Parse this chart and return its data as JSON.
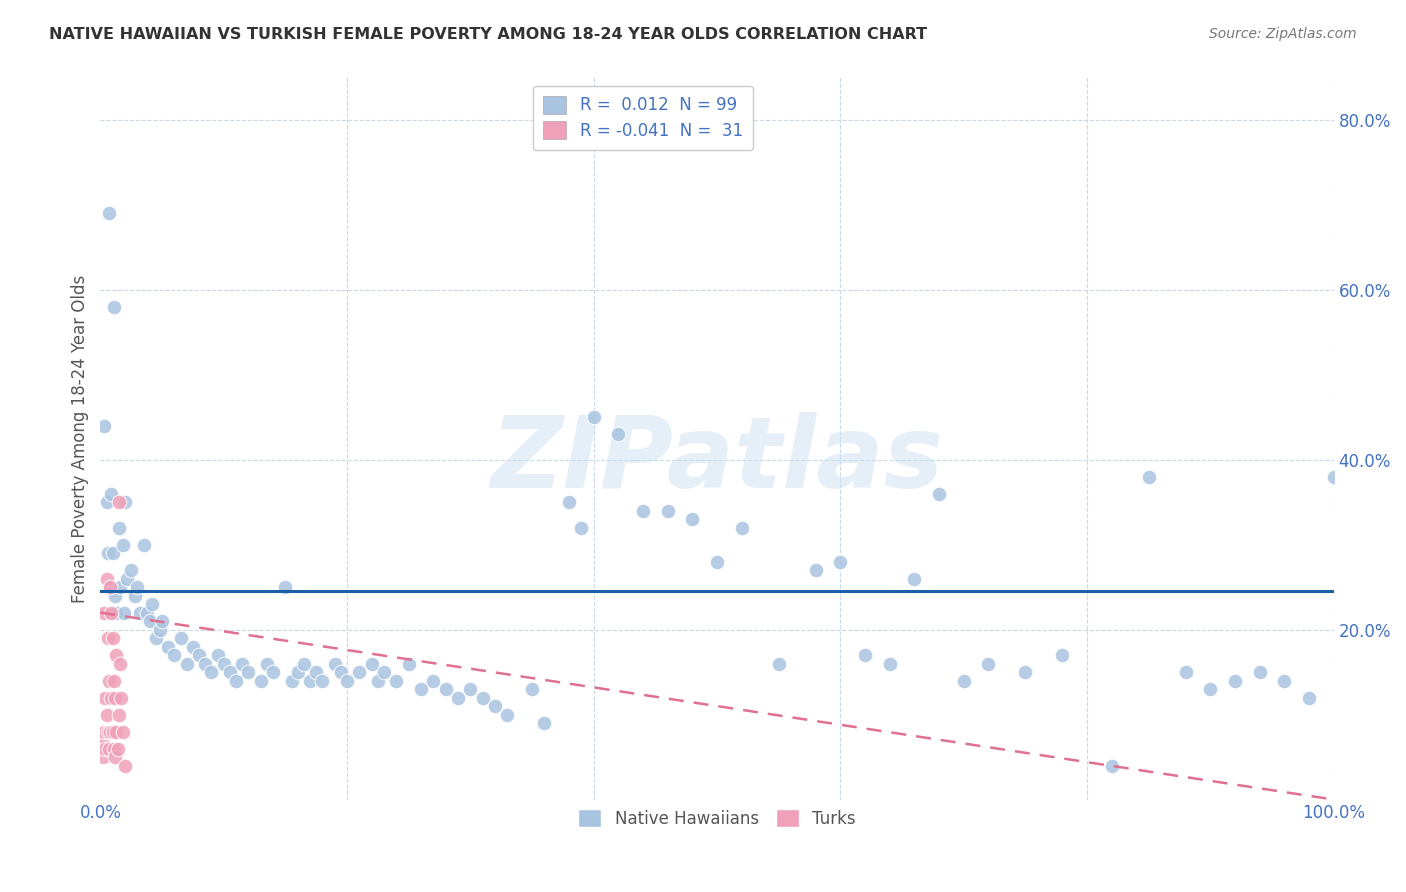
{
  "title": "NATIVE HAWAIIAN VS TURKISH FEMALE POVERTY AMONG 18-24 YEAR OLDS CORRELATION CHART",
  "source": "Source: ZipAtlas.com",
  "ylabel": "Female Poverty Among 18-24 Year Olds",
  "xlim": [
    0,
    1.0
  ],
  "ylim": [
    0,
    0.85
  ],
  "hawaiian_color": "#a8c4e0",
  "turkish_color": "#f0a0b8",
  "hawaiian_R": 0.012,
  "hawaiian_N": 99,
  "turkish_R": -0.041,
  "turkish_N": 31,
  "trendline_hawaiian_color": "#1a5fa8",
  "trendline_turkish_color": "#e07090",
  "background_color": "#ffffff",
  "grid_color": "#c8d8e8",
  "legend_label_hawaiian": "Native Hawaiians",
  "legend_label_turkish": "Turks",
  "watermark": "ZIPatlas",
  "nh_x": [
    0.003,
    0.005,
    0.006,
    0.008,
    0.009,
    0.01,
    0.012,
    0.013,
    0.015,
    0.016,
    0.018,
    0.019,
    0.02,
    0.022,
    0.025,
    0.028,
    0.03,
    0.032,
    0.035,
    0.038,
    0.04,
    0.042,
    0.045,
    0.048,
    0.05,
    0.055,
    0.06,
    0.065,
    0.07,
    0.075,
    0.08,
    0.085,
    0.09,
    0.095,
    0.1,
    0.105,
    0.11,
    0.115,
    0.12,
    0.13,
    0.135,
    0.14,
    0.15,
    0.155,
    0.16,
    0.165,
    0.17,
    0.175,
    0.18,
    0.19,
    0.195,
    0.2,
    0.21,
    0.22,
    0.225,
    0.23,
    0.24,
    0.25,
    0.26,
    0.27,
    0.28,
    0.29,
    0.3,
    0.31,
    0.32,
    0.33,
    0.35,
    0.36,
    0.38,
    0.39,
    0.4,
    0.42,
    0.44,
    0.46,
    0.48,
    0.5,
    0.52,
    0.55,
    0.58,
    0.6,
    0.62,
    0.64,
    0.66,
    0.68,
    0.7,
    0.72,
    0.75,
    0.78,
    0.82,
    0.85,
    0.88,
    0.9,
    0.92,
    0.94,
    0.96,
    0.98,
    1.0,
    0.007,
    0.011
  ],
  "nh_y": [
    0.44,
    0.35,
    0.29,
    0.25,
    0.36,
    0.29,
    0.24,
    0.22,
    0.32,
    0.25,
    0.3,
    0.22,
    0.35,
    0.26,
    0.27,
    0.24,
    0.25,
    0.22,
    0.3,
    0.22,
    0.21,
    0.23,
    0.19,
    0.2,
    0.21,
    0.18,
    0.17,
    0.19,
    0.16,
    0.18,
    0.17,
    0.16,
    0.15,
    0.17,
    0.16,
    0.15,
    0.14,
    0.16,
    0.15,
    0.14,
    0.16,
    0.15,
    0.25,
    0.14,
    0.15,
    0.16,
    0.14,
    0.15,
    0.14,
    0.16,
    0.15,
    0.14,
    0.15,
    0.16,
    0.14,
    0.15,
    0.14,
    0.16,
    0.13,
    0.14,
    0.13,
    0.12,
    0.13,
    0.12,
    0.11,
    0.1,
    0.13,
    0.09,
    0.35,
    0.32,
    0.45,
    0.43,
    0.34,
    0.34,
    0.33,
    0.28,
    0.32,
    0.16,
    0.27,
    0.28,
    0.17,
    0.16,
    0.26,
    0.36,
    0.14,
    0.16,
    0.15,
    0.17,
    0.04,
    0.38,
    0.15,
    0.13,
    0.14,
    0.15,
    0.14,
    0.12,
    0.38,
    0.69,
    0.58
  ],
  "tk_x": [
    0.001,
    0.002,
    0.003,
    0.003,
    0.004,
    0.004,
    0.005,
    0.005,
    0.006,
    0.006,
    0.007,
    0.007,
    0.008,
    0.008,
    0.009,
    0.009,
    0.01,
    0.01,
    0.011,
    0.011,
    0.012,
    0.012,
    0.013,
    0.013,
    0.014,
    0.015,
    0.015,
    0.016,
    0.017,
    0.018,
    0.02
  ],
  "tk_y": [
    0.07,
    0.05,
    0.22,
    0.08,
    0.12,
    0.06,
    0.26,
    0.1,
    0.19,
    0.08,
    0.14,
    0.06,
    0.25,
    0.08,
    0.22,
    0.12,
    0.19,
    0.08,
    0.14,
    0.06,
    0.12,
    0.05,
    0.17,
    0.08,
    0.06,
    0.35,
    0.1,
    0.16,
    0.12,
    0.08,
    0.04
  ]
}
